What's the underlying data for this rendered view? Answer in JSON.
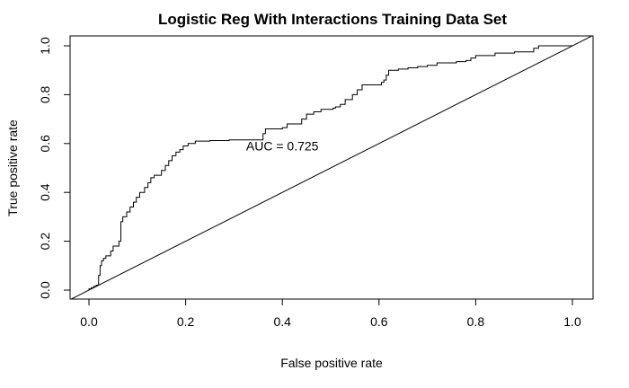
{
  "chart_data": {
    "type": "line",
    "title": "Logistic Reg With Interactions Training Data Set",
    "xlabel": "False positive rate",
    "ylabel": "True positive rate",
    "xlim": [
      0,
      1
    ],
    "ylim": [
      0,
      1
    ],
    "x_ticks": [
      "0.0",
      "0.2",
      "0.4",
      "0.6",
      "0.8",
      "1.0"
    ],
    "y_ticks": [
      "0.0",
      "0.2",
      "0.4",
      "0.6",
      "0.8",
      "1.0"
    ],
    "annotation": {
      "text": "AUC = 0.725",
      "x": 0.4,
      "y": 0.59
    },
    "grid": false,
    "series": [
      {
        "style": "step",
        "points": [
          [
            0.0,
            0.0
          ],
          [
            0.0,
            0.005
          ],
          [
            0.005,
            0.005
          ],
          [
            0.005,
            0.01
          ],
          [
            0.01,
            0.01
          ],
          [
            0.01,
            0.015
          ],
          [
            0.015,
            0.015
          ],
          [
            0.015,
            0.02
          ],
          [
            0.02,
            0.02
          ],
          [
            0.02,
            0.06
          ],
          [
            0.023,
            0.06
          ],
          [
            0.023,
            0.1
          ],
          [
            0.026,
            0.1
          ],
          [
            0.026,
            0.12
          ],
          [
            0.03,
            0.12
          ],
          [
            0.03,
            0.13
          ],
          [
            0.035,
            0.13
          ],
          [
            0.035,
            0.14
          ],
          [
            0.045,
            0.14
          ],
          [
            0.045,
            0.16
          ],
          [
            0.05,
            0.16
          ],
          [
            0.05,
            0.18
          ],
          [
            0.062,
            0.18
          ],
          [
            0.062,
            0.2
          ],
          [
            0.066,
            0.2
          ],
          [
            0.066,
            0.28
          ],
          [
            0.07,
            0.28
          ],
          [
            0.07,
            0.3
          ],
          [
            0.078,
            0.3
          ],
          [
            0.078,
            0.32
          ],
          [
            0.085,
            0.32
          ],
          [
            0.085,
            0.34
          ],
          [
            0.092,
            0.34
          ],
          [
            0.092,
            0.36
          ],
          [
            0.098,
            0.36
          ],
          [
            0.098,
            0.38
          ],
          [
            0.105,
            0.38
          ],
          [
            0.105,
            0.4
          ],
          [
            0.115,
            0.4
          ],
          [
            0.115,
            0.42
          ],
          [
            0.122,
            0.42
          ],
          [
            0.122,
            0.44
          ],
          [
            0.128,
            0.44
          ],
          [
            0.128,
            0.46
          ],
          [
            0.135,
            0.46
          ],
          [
            0.135,
            0.47
          ],
          [
            0.15,
            0.47
          ],
          [
            0.15,
            0.49
          ],
          [
            0.158,
            0.49
          ],
          [
            0.158,
            0.51
          ],
          [
            0.165,
            0.51
          ],
          [
            0.165,
            0.53
          ],
          [
            0.172,
            0.53
          ],
          [
            0.172,
            0.55
          ],
          [
            0.18,
            0.55
          ],
          [
            0.18,
            0.565
          ],
          [
            0.188,
            0.565
          ],
          [
            0.188,
            0.575
          ],
          [
            0.195,
            0.575
          ],
          [
            0.195,
            0.59
          ],
          [
            0.205,
            0.59
          ],
          [
            0.205,
            0.6
          ],
          [
            0.22,
            0.6
          ],
          [
            0.22,
            0.61
          ],
          [
            0.25,
            0.61
          ],
          [
            0.25,
            0.612
          ],
          [
            0.29,
            0.612
          ],
          [
            0.29,
            0.615
          ],
          [
            0.36,
            0.615
          ],
          [
            0.36,
            0.64
          ],
          [
            0.365,
            0.64
          ],
          [
            0.365,
            0.66
          ],
          [
            0.4,
            0.66
          ],
          [
            0.4,
            0.665
          ],
          [
            0.41,
            0.665
          ],
          [
            0.41,
            0.68
          ],
          [
            0.44,
            0.68
          ],
          [
            0.44,
            0.7
          ],
          [
            0.45,
            0.7
          ],
          [
            0.45,
            0.72
          ],
          [
            0.465,
            0.72
          ],
          [
            0.465,
            0.73
          ],
          [
            0.48,
            0.73
          ],
          [
            0.48,
            0.74
          ],
          [
            0.505,
            0.74
          ],
          [
            0.505,
            0.745
          ],
          [
            0.51,
            0.745
          ],
          [
            0.51,
            0.75
          ],
          [
            0.52,
            0.75
          ],
          [
            0.52,
            0.76
          ],
          [
            0.53,
            0.76
          ],
          [
            0.53,
            0.78
          ],
          [
            0.545,
            0.78
          ],
          [
            0.545,
            0.8
          ],
          [
            0.555,
            0.8
          ],
          [
            0.555,
            0.82
          ],
          [
            0.565,
            0.82
          ],
          [
            0.565,
            0.84
          ],
          [
            0.605,
            0.84
          ],
          [
            0.605,
            0.85
          ],
          [
            0.61,
            0.85
          ],
          [
            0.61,
            0.86
          ],
          [
            0.615,
            0.86
          ],
          [
            0.615,
            0.88
          ],
          [
            0.62,
            0.88
          ],
          [
            0.62,
            0.9
          ],
          [
            0.64,
            0.9
          ],
          [
            0.64,
            0.905
          ],
          [
            0.66,
            0.905
          ],
          [
            0.66,
            0.91
          ],
          [
            0.68,
            0.91
          ],
          [
            0.68,
            0.915
          ],
          [
            0.7,
            0.915
          ],
          [
            0.7,
            0.92
          ],
          [
            0.72,
            0.92
          ],
          [
            0.72,
            0.93
          ],
          [
            0.76,
            0.93
          ],
          [
            0.76,
            0.935
          ],
          [
            0.78,
            0.935
          ],
          [
            0.78,
            0.94
          ],
          [
            0.79,
            0.94
          ],
          [
            0.79,
            0.95
          ],
          [
            0.8,
            0.95
          ],
          [
            0.8,
            0.96
          ],
          [
            0.84,
            0.96
          ],
          [
            0.84,
            0.97
          ],
          [
            0.88,
            0.97
          ],
          [
            0.88,
            0.975
          ],
          [
            0.92,
            0.975
          ],
          [
            0.92,
            0.99
          ],
          [
            0.93,
            0.99
          ],
          [
            0.93,
            1.0
          ],
          [
            1.0,
            1.0
          ]
        ]
      },
      {
        "style": "diagonal",
        "points": [
          [
            -0.05,
            -0.05
          ],
          [
            1.05,
            1.05
          ]
        ]
      }
    ]
  }
}
